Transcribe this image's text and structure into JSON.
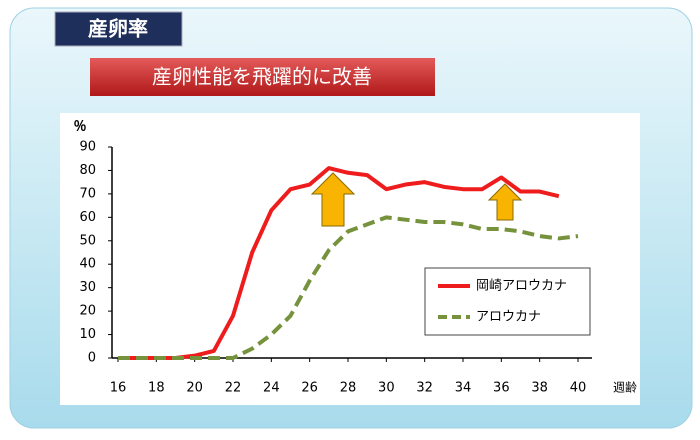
{
  "chart_data": {
    "type": "line",
    "title": "産卵率",
    "subtitle": "産卵性能を飛躍的に改善",
    "y_label": "％",
    "x_label": "週齢",
    "x": [
      16,
      17,
      18,
      19,
      20,
      21,
      22,
      23,
      24,
      25,
      26,
      27,
      28,
      29,
      30,
      31,
      32,
      33,
      34,
      35,
      36,
      37,
      38,
      39,
      40
    ],
    "series": [
      {
        "name": "岡崎アロウカナ",
        "color": "#ee1c1c",
        "dashed": false,
        "values": [
          0,
          0,
          0,
          0,
          1,
          3,
          18,
          45,
          63,
          72,
          74,
          81,
          79,
          78,
          72,
          74,
          75,
          73,
          72,
          72,
          77,
          71,
          71,
          69,
          null
        ]
      },
      {
        "name": "アロウカナ",
        "color": "#76923c",
        "dashed": true,
        "values": [
          0,
          0,
          0,
          0,
          0,
          0,
          0,
          4,
          10,
          18,
          33,
          46,
          54,
          57,
          60,
          59,
          58,
          58,
          57,
          55,
          55,
          54,
          52,
          51,
          52
        ]
      }
    ],
    "xlim": [
      16,
      40
    ],
    "ylim": [
      0,
      90
    ],
    "xticks": [
      16,
      18,
      20,
      22,
      24,
      26,
      28,
      30,
      32,
      34,
      36,
      38,
      40
    ],
    "yticks": [
      0,
      10,
      20,
      30,
      40,
      50,
      60,
      70,
      80,
      90
    ],
    "grid": false
  }
}
